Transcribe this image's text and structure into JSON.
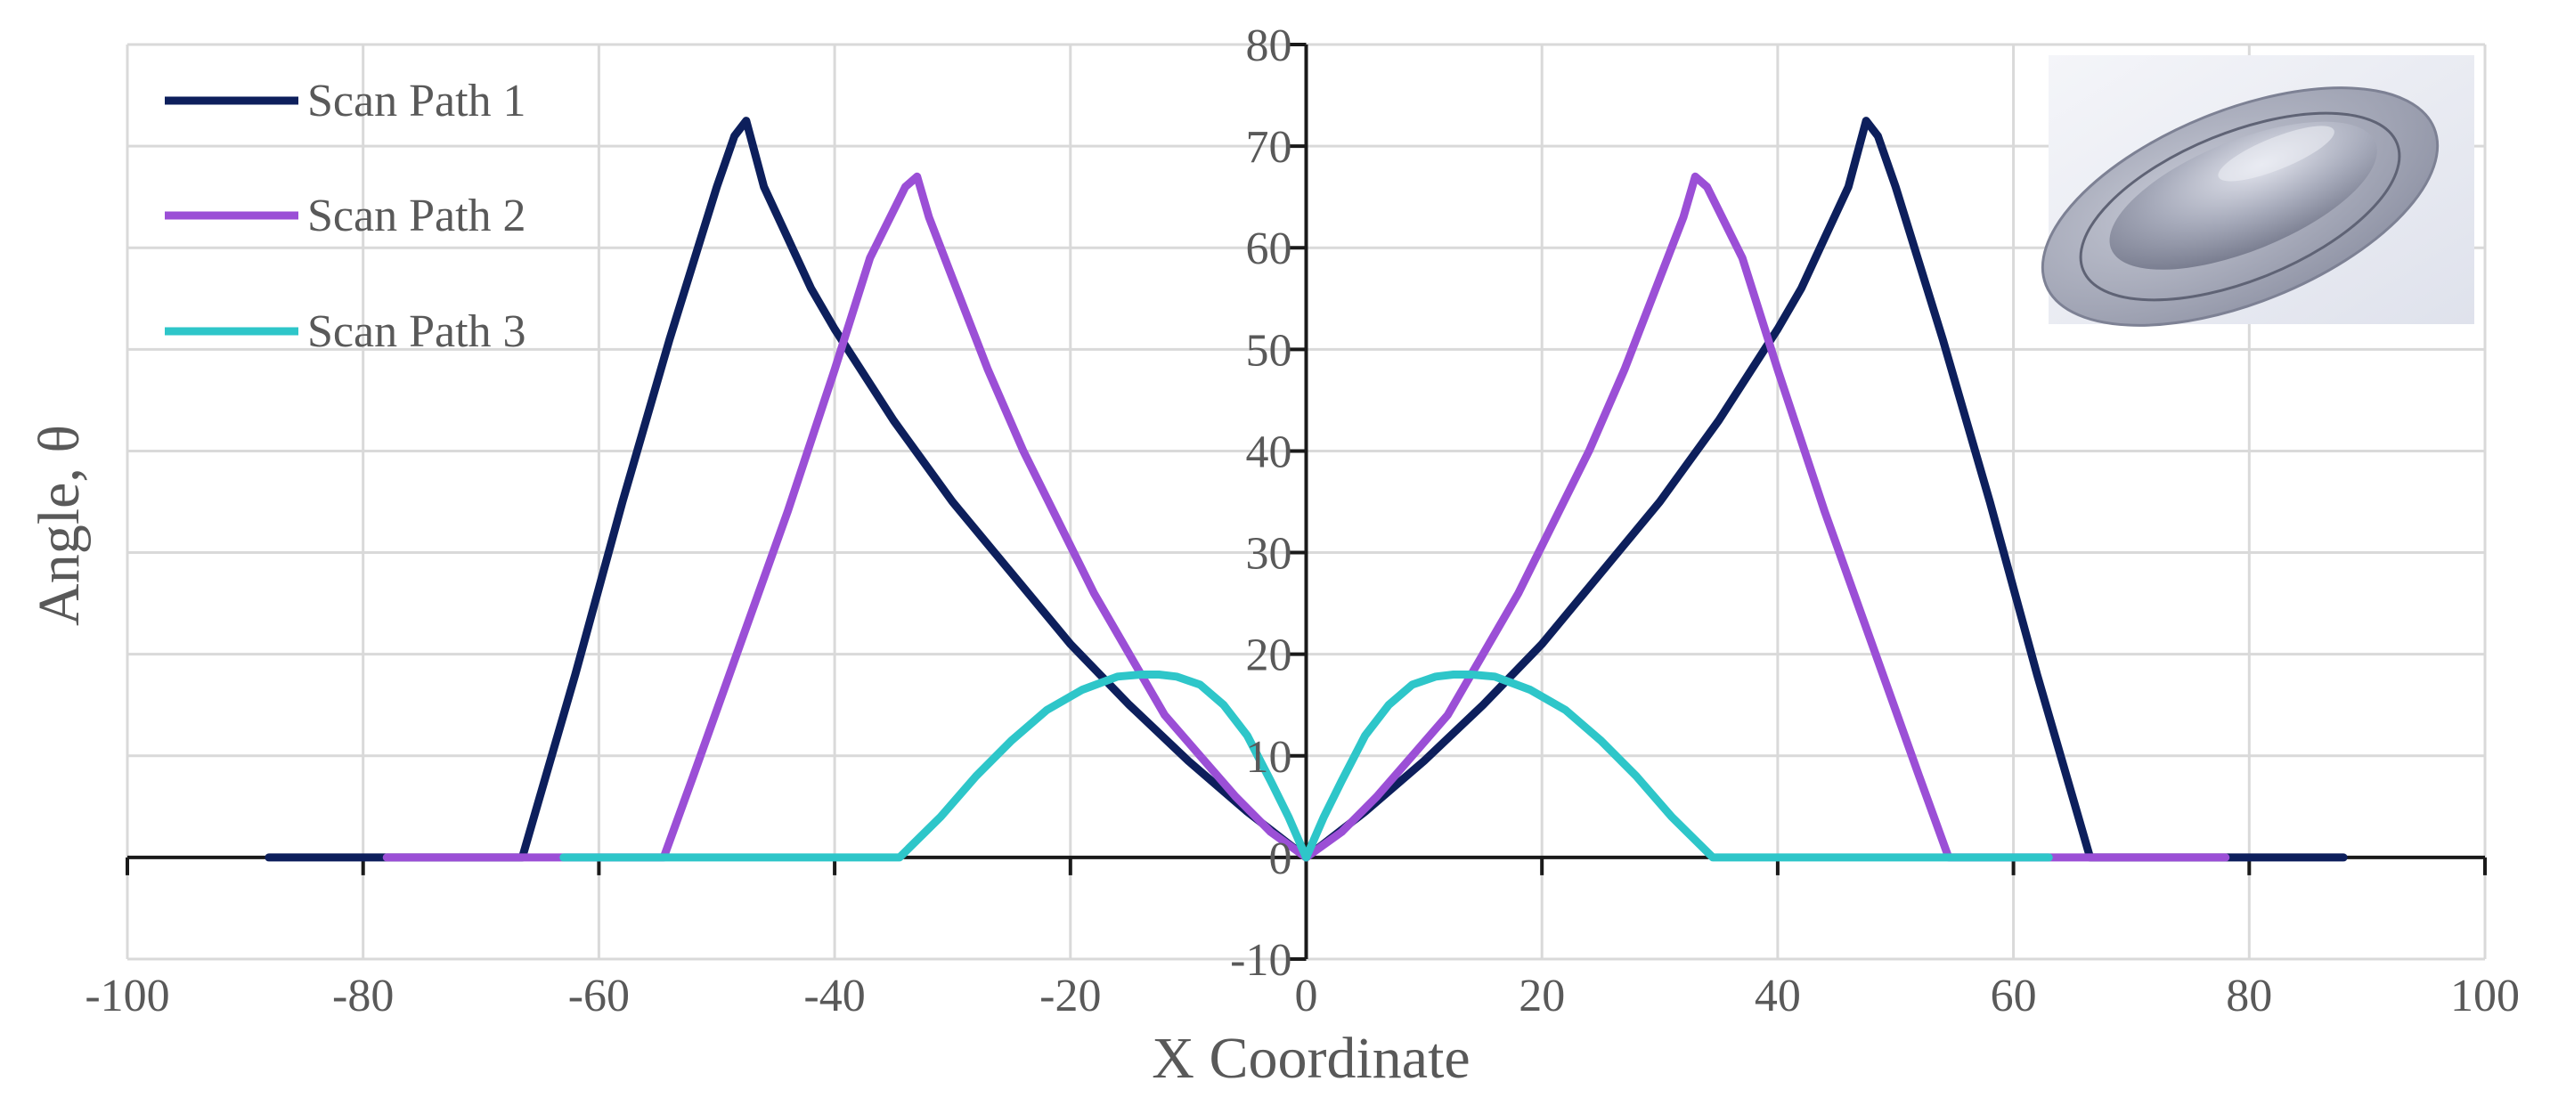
{
  "chart_data": {
    "type": "line",
    "title": "",
    "xlabel": "X Coordinate",
    "ylabel": "Angle, θ",
    "xlim": [
      -100,
      100
    ],
    "ylim": [
      -10,
      80
    ],
    "x_ticks": [
      -100,
      -80,
      -60,
      -40,
      -20,
      0,
      20,
      40,
      60,
      80,
      100
    ],
    "y_ticks": [
      -10,
      0,
      10,
      20,
      30,
      40,
      50,
      60,
      70,
      80
    ],
    "x_tick_labels": [
      "-100",
      "-80",
      "-60",
      "-40",
      "-20",
      "0",
      "20",
      "40",
      "60",
      "80",
      "100"
    ],
    "y_tick_labels": [
      "-10",
      "0",
      "10",
      "20",
      "30",
      "40",
      "50",
      "60",
      "70",
      "80"
    ],
    "grid": true,
    "legend_position": "top-left",
    "series": [
      {
        "name": "Scan Path 1",
        "color": "#0d1f5c",
        "x": [
          -88,
          -80,
          -70,
          -66.5,
          -65,
          -62,
          -58,
          -54,
          -50,
          -48.5,
          -47.5,
          -46,
          -44,
          -42,
          -40,
          -35,
          -30,
          -25,
          -20,
          -15,
          -10,
          -5,
          0,
          5,
          10,
          15,
          20,
          25,
          30,
          35,
          40,
          42,
          44,
          46,
          47.5,
          48.5,
          50,
          54,
          58,
          62,
          65,
          66.5,
          70,
          80,
          88
        ],
        "y": [
          0,
          0,
          0,
          0,
          6,
          18,
          35,
          51,
          66,
          71,
          72.5,
          66,
          61,
          56,
          52,
          43,
          35,
          28,
          21,
          15,
          9.5,
          4.5,
          0,
          4.5,
          9.5,
          15,
          21,
          28,
          35,
          43,
          52,
          56,
          61,
          66,
          72.5,
          71,
          66,
          51,
          35,
          18,
          6,
          0,
          0,
          0,
          0
        ]
      },
      {
        "name": "Scan Path 2",
        "color": "#9b4fd6",
        "x": [
          -78,
          -70,
          -60,
          -54.5,
          -52,
          -48,
          -44,
          -40,
          -37,
          -34,
          -33,
          -32,
          -30,
          -27,
          -24,
          -21,
          -18,
          -15,
          -12,
          -9,
          -6,
          -3,
          0,
          3,
          6,
          9,
          12,
          15,
          18,
          21,
          24,
          27,
          30,
          32,
          33,
          34,
          37,
          40,
          44,
          48,
          52,
          54.5,
          60,
          70,
          78
        ],
        "y": [
          0,
          0,
          0,
          0,
          8,
          21,
          34,
          48,
          59,
          66,
          67,
          63,
          57,
          48,
          40,
          33,
          26,
          20,
          14,
          10,
          6,
          2.5,
          0,
          2.5,
          6,
          10,
          14,
          20,
          26,
          33,
          40,
          48,
          57,
          63,
          67,
          66,
          59,
          48,
          34,
          21,
          8,
          0,
          0,
          0,
          0
        ]
      },
      {
        "name": "Scan Path 3",
        "color": "#2ec6c9",
        "x": [
          -63,
          -50,
          -40,
          -34.5,
          -31,
          -28,
          -25,
          -22,
          -19,
          -16,
          -14,
          -12.5,
          -11,
          -9,
          -7,
          -5,
          -3,
          -1.5,
          0,
          1.5,
          3,
          5,
          7,
          9,
          11,
          12.5,
          14,
          16,
          19,
          22,
          25,
          28,
          31,
          34.5,
          40,
          50,
          63
        ],
        "y": [
          0,
          0,
          0,
          0,
          4,
          8,
          11.5,
          14.5,
          16.5,
          17.8,
          18,
          18,
          17.8,
          17,
          15,
          12,
          7.5,
          4,
          0,
          4,
          7.5,
          12,
          15,
          17,
          17.8,
          18,
          18,
          17.8,
          16.5,
          14.5,
          11.5,
          8,
          4,
          0,
          0,
          0,
          0
        ]
      }
    ]
  }
}
